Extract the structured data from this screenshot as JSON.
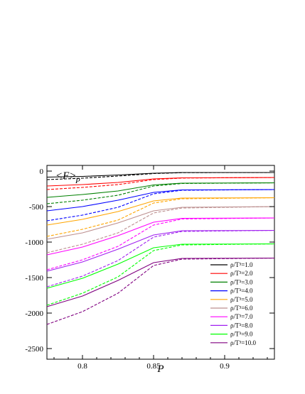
{
  "chart_data": {
    "type": "line",
    "xlabel": "P",
    "annotation": "<F>",
    "annotation_sub": "P",
    "xlim": [
      0.775,
      0.935
    ],
    "ylim": [
      -2650,
      80
    ],
    "xticks": [
      0.8,
      0.85,
      0.9
    ],
    "xtick_labels": [
      "0.8",
      "0.85",
      "0.9"
    ],
    "yticks": [
      0,
      -500,
      -1000,
      -1500,
      -2000,
      -2500
    ],
    "ytick_labels": [
      "0",
      "-500",
      "-1000",
      "-1500",
      "-2000",
      "-2500"
    ],
    "grid": false,
    "legend_position": "bottom-right",
    "line_styles": [
      "solid",
      "dashed"
    ],
    "series": [
      {
        "name": "ρ/T³=1.0",
        "color": "#000000",
        "solid": [
          [
            0.775,
            -85
          ],
          [
            0.8,
            -75
          ],
          [
            0.825,
            -55
          ],
          [
            0.85,
            -30
          ],
          [
            0.87,
            -20
          ],
          [
            0.935,
            -20
          ]
        ],
        "dashed": [
          [
            0.775,
            -120
          ],
          [
            0.8,
            -100
          ],
          [
            0.825,
            -70
          ],
          [
            0.85,
            -35
          ],
          [
            0.87,
            -22
          ],
          [
            0.935,
            -20
          ]
        ]
      },
      {
        "name": "ρ/T³=2.0",
        "color": "#ff0000",
        "solid": [
          [
            0.775,
            -210
          ],
          [
            0.8,
            -190
          ],
          [
            0.825,
            -160
          ],
          [
            0.85,
            -110
          ],
          [
            0.87,
            -95
          ],
          [
            0.935,
            -90
          ]
        ],
        "dashed": [
          [
            0.775,
            -260
          ],
          [
            0.8,
            -230
          ],
          [
            0.825,
            -190
          ],
          [
            0.85,
            -120
          ],
          [
            0.87,
            -98
          ],
          [
            0.935,
            -90
          ]
        ]
      },
      {
        "name": "ρ/T³=3.0",
        "color": "#008000",
        "solid": [
          [
            0.775,
            -370
          ],
          [
            0.8,
            -330
          ],
          [
            0.825,
            -280
          ],
          [
            0.85,
            -195
          ],
          [
            0.87,
            -170
          ],
          [
            0.935,
            -165
          ]
        ],
        "dashed": [
          [
            0.775,
            -460
          ],
          [
            0.8,
            -410
          ],
          [
            0.825,
            -340
          ],
          [
            0.85,
            -210
          ],
          [
            0.87,
            -175
          ],
          [
            0.935,
            -165
          ]
        ]
      },
      {
        "name": "ρ/T³=4.0",
        "color": "#0000ff",
        "solid": [
          [
            0.775,
            -560
          ],
          [
            0.8,
            -500
          ],
          [
            0.825,
            -410
          ],
          [
            0.85,
            -300
          ],
          [
            0.87,
            -265
          ],
          [
            0.935,
            -260
          ]
        ],
        "dashed": [
          [
            0.775,
            -700
          ],
          [
            0.8,
            -620
          ],
          [
            0.825,
            -510
          ],
          [
            0.85,
            -320
          ],
          [
            0.87,
            -270
          ],
          [
            0.935,
            -260
          ]
        ]
      },
      {
        "name": "ρ/T³=5.0",
        "color": "#ffa500",
        "solid": [
          [
            0.775,
            -760
          ],
          [
            0.8,
            -680
          ],
          [
            0.825,
            -570
          ],
          [
            0.85,
            -420
          ],
          [
            0.87,
            -380
          ],
          [
            0.935,
            -375
          ]
        ],
        "dashed": [
          [
            0.775,
            -920
          ],
          [
            0.8,
            -820
          ],
          [
            0.825,
            -690
          ],
          [
            0.85,
            -450
          ],
          [
            0.87,
            -390
          ],
          [
            0.935,
            -375
          ]
        ]
      },
      {
        "name": "ρ/T³=6.0",
        "color": "#bc8f8f",
        "solid": [
          [
            0.775,
            -960
          ],
          [
            0.8,
            -870
          ],
          [
            0.825,
            -730
          ],
          [
            0.85,
            -560
          ],
          [
            0.87,
            -510
          ],
          [
            0.935,
            -500
          ]
        ],
        "dashed": [
          [
            0.775,
            -1150
          ],
          [
            0.8,
            -1030
          ],
          [
            0.825,
            -870
          ],
          [
            0.85,
            -590
          ],
          [
            0.87,
            -520
          ],
          [
            0.935,
            -500
          ]
        ]
      },
      {
        "name": "ρ/T³=7.0",
        "color": "#ff00ff",
        "solid": [
          [
            0.775,
            -1180
          ],
          [
            0.8,
            -1070
          ],
          [
            0.825,
            -910
          ],
          [
            0.85,
            -720
          ],
          [
            0.87,
            -665
          ],
          [
            0.935,
            -660
          ]
        ],
        "dashed": [
          [
            0.775,
            -1390
          ],
          [
            0.8,
            -1250
          ],
          [
            0.825,
            -1060
          ],
          [
            0.85,
            -760
          ],
          [
            0.87,
            -675
          ],
          [
            0.935,
            -660
          ]
        ]
      },
      {
        "name": "ρ/T³=8.0",
        "color": "#a020f0",
        "solid": [
          [
            0.775,
            -1410
          ],
          [
            0.8,
            -1280
          ],
          [
            0.825,
            -1100
          ],
          [
            0.85,
            -900
          ],
          [
            0.87,
            -840
          ],
          [
            0.935,
            -835
          ]
        ],
        "dashed": [
          [
            0.775,
            -1630
          ],
          [
            0.8,
            -1480
          ],
          [
            0.825,
            -1260
          ],
          [
            0.85,
            -930
          ],
          [
            0.87,
            -850
          ],
          [
            0.935,
            -835
          ]
        ]
      },
      {
        "name": "ρ/T³=9.0",
        "color": "#00ff00",
        "solid": [
          [
            0.775,
            -1650
          ],
          [
            0.8,
            -1510
          ],
          [
            0.825,
            -1310
          ],
          [
            0.85,
            -1080
          ],
          [
            0.87,
            -1030
          ],
          [
            0.935,
            -1025
          ]
        ],
        "dashed": [
          [
            0.775,
            -1890
          ],
          [
            0.8,
            -1720
          ],
          [
            0.825,
            -1490
          ],
          [
            0.85,
            -1120
          ],
          [
            0.87,
            -1040
          ],
          [
            0.935,
            -1025
          ]
        ]
      },
      {
        "name": "ρ/T³=10.0",
        "color": "#800080",
        "solid": [
          [
            0.775,
            -1910
          ],
          [
            0.8,
            -1760
          ],
          [
            0.825,
            -1540
          ],
          [
            0.85,
            -1290
          ],
          [
            0.87,
            -1230
          ],
          [
            0.935,
            -1225
          ]
        ],
        "dashed": [
          [
            0.775,
            -2160
          ],
          [
            0.8,
            -1980
          ],
          [
            0.825,
            -1720
          ],
          [
            0.85,
            -1330
          ],
          [
            0.87,
            -1240
          ],
          [
            0.935,
            -1225
          ]
        ]
      }
    ]
  }
}
